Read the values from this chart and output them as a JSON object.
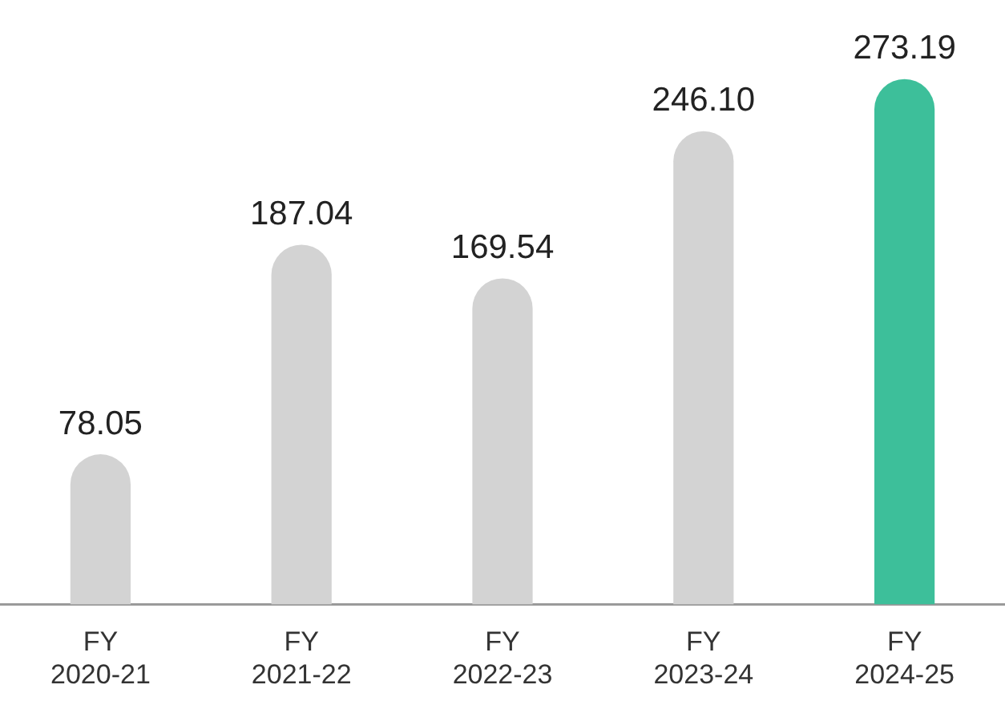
{
  "chart_data": {
    "type": "bar",
    "categories": [
      "FY 2020-21",
      "FY 2021-22",
      "FY 2022-23",
      "FY 2023-24",
      "FY 2024-25"
    ],
    "values": [
      78.05,
      187.04,
      169.54,
      246.1,
      273.19
    ],
    "value_labels": [
      "78.05",
      "187.04",
      "169.54",
      "246.10",
      "273.19"
    ],
    "colors": [
      "#d3d3d3",
      "#d3d3d3",
      "#d3d3d3",
      "#d3d3d3",
      "#3dbf9a"
    ],
    "grid": false,
    "legend": false
  }
}
